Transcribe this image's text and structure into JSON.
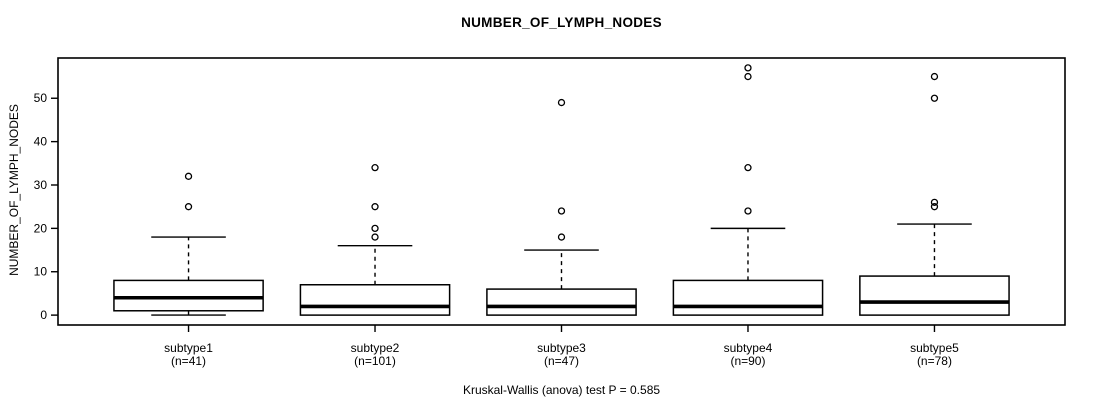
{
  "chart_data": {
    "type": "boxplot",
    "title": "NUMBER_OF_LYMPH_NODES",
    "ylabel": "NUMBER_OF_LYMPH_NODES",
    "caption": "Kruskal-Wallis (anova) test P = 0.585",
    "xlabel": "",
    "y_ticks": [
      0,
      10,
      20,
      30,
      40,
      50
    ],
    "ylim": [
      -2.28,
      59.28
    ],
    "grid": false,
    "legend": "none",
    "groups": [
      {
        "label": "subtype1",
        "n_label": "(n=41)",
        "whisker_low": 0,
        "q1": 1,
        "median": 4,
        "q3": 8,
        "whisker_high": 18,
        "outliers": [
          25,
          32
        ]
      },
      {
        "label": "subtype2",
        "n_label": "(n=101)",
        "whisker_low": 0,
        "q1": 0,
        "median": 2,
        "q3": 7,
        "whisker_high": 16,
        "outliers": [
          18,
          20,
          25,
          34
        ]
      },
      {
        "label": "subtype3",
        "n_label": "(n=47)",
        "whisker_low": 0,
        "q1": 0,
        "median": 2,
        "q3": 6,
        "whisker_high": 15,
        "outliers": [
          18,
          24,
          49
        ]
      },
      {
        "label": "subtype4",
        "n_label": "(n=90)",
        "whisker_low": 0,
        "q1": 0,
        "median": 2,
        "q3": 8,
        "whisker_high": 20,
        "outliers": [
          24,
          34,
          55,
          57
        ]
      },
      {
        "label": "subtype5",
        "n_label": "(n=78)",
        "whisker_low": 0,
        "q1": 0,
        "median": 3,
        "q3": 9,
        "whisker_high": 21,
        "outliers": [
          25,
          26,
          50,
          55
        ]
      }
    ],
    "colors": {
      "line": "#000000",
      "box_fill": "#ffffff",
      "background": "#ffffff"
    }
  }
}
